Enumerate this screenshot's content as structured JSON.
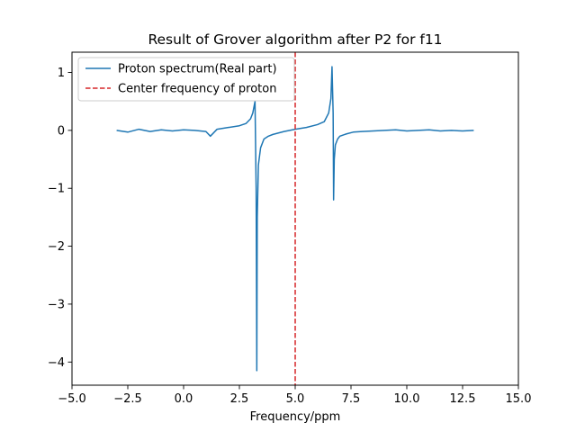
{
  "chart_data": {
    "type": "line",
    "title": "Result of Grover algorithm after P2 for f11",
    "xlabel": "Frequency/ppm",
    "ylabel": "",
    "xlim": [
      -5.0,
      15.0
    ],
    "ylim": [
      -4.4,
      1.35
    ],
    "x_ticks": [
      -5.0,
      -2.5,
      0.0,
      2.5,
      5.0,
      7.5,
      10.0,
      12.5,
      15.0
    ],
    "x_tick_labels": [
      "−5.0",
      "−2.5",
      "0.0",
      "2.5",
      "5.0",
      "7.5",
      "10.0",
      "12.5",
      "15.0"
    ],
    "y_ticks": [
      -4,
      -3,
      -2,
      -1,
      0,
      1
    ],
    "y_tick_labels": [
      "−4",
      "−3",
      "−2",
      "−1",
      "0",
      "1"
    ],
    "grid": false,
    "legend_position": "top-left",
    "series": [
      {
        "name": "Proton spectrum(Real part)",
        "color": "#1f77b4",
        "style": "solid",
        "x": [
          -3.0,
          -2.5,
          -2.0,
          -1.5,
          -1.0,
          -0.5,
          0.0,
          0.5,
          1.0,
          1.2,
          1.5,
          2.0,
          2.5,
          2.8,
          3.0,
          3.1,
          3.2,
          3.25,
          3.28,
          3.3,
          3.35,
          3.45,
          3.6,
          3.8,
          4.0,
          4.5,
          5.0,
          5.5,
          6.0,
          6.3,
          6.5,
          6.6,
          6.65,
          6.7,
          6.72,
          6.75,
          6.8,
          6.9,
          7.0,
          7.3,
          7.6,
          8.0,
          8.5,
          9.0,
          9.5,
          10.0,
          10.5,
          11.0,
          11.5,
          12.0,
          12.5,
          13.0
        ],
        "y": [
          0.0,
          -0.03,
          0.02,
          -0.02,
          0.01,
          -0.01,
          0.01,
          0.0,
          -0.02,
          -0.1,
          0.02,
          0.05,
          0.08,
          0.12,
          0.2,
          0.3,
          0.5,
          -1.0,
          -4.15,
          -1.5,
          -0.6,
          -0.3,
          -0.15,
          -0.1,
          -0.07,
          -0.02,
          0.02,
          0.05,
          0.1,
          0.15,
          0.3,
          0.55,
          1.1,
          0.3,
          -1.2,
          -0.5,
          -0.25,
          -0.15,
          -0.1,
          -0.06,
          -0.03,
          -0.02,
          -0.01,
          0.0,
          0.01,
          -0.01,
          0.0,
          0.01,
          -0.01,
          0.0,
          -0.01,
          0.0
        ]
      },
      {
        "name": "Center frequency of proton",
        "color": "#d62728",
        "style": "dashed",
        "vline_x": 5.0
      }
    ]
  }
}
